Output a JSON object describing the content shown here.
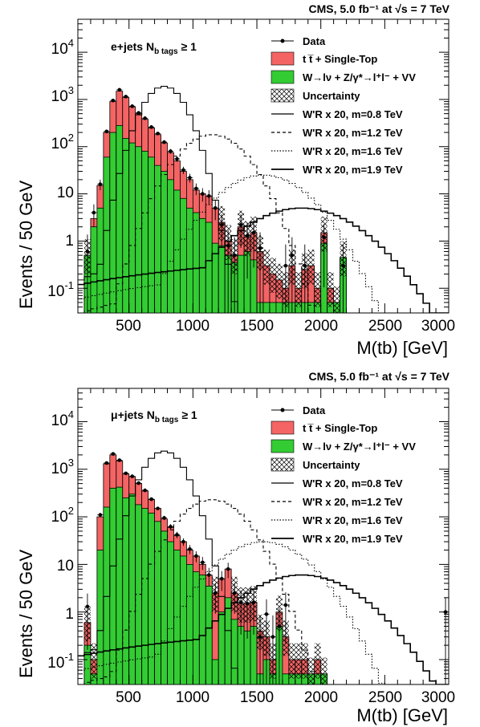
{
  "chart_data": [
    {
      "type": "area",
      "panel": "top",
      "header": "CMS, 5.0 fb⁻¹ at √s = 7 TeV",
      "channel_label": "e+jets N",
      "channel_sub": "b tags",
      "channel_cut": "≥ 1",
      "xlabel": "M(tb) [GeV]",
      "ylabel": "Events / 50 GeV",
      "xlim": [
        100,
        3000
      ],
      "ylim": [
        0.03,
        50000
      ],
      "yscale": "log",
      "x_ticks": [
        "500",
        "1000",
        "1500",
        "2000",
        "2500",
        "3000"
      ],
      "y_ticks": [
        "10⁻¹",
        "1",
        "10",
        "10²",
        "10³",
        "10⁴"
      ],
      "legend": [
        "Data",
        "t t̅ + Single-Top",
        "W→lν + Z/γ*→l⁺l⁻ + VV",
        "Uncertainty",
        "W'R x 20, m=0.8 TeV",
        "W'R x 20, m=1.2 TeV",
        "W'R x 20, m=1.6 TeV",
        "W'R x 20, m=1.9 TeV"
      ],
      "bin_width": 50,
      "bin_start": 150,
      "stack_total": [
        0.5,
        3,
        15,
        200,
        900,
        1500,
        1100,
        700,
        500,
        380,
        250,
        180,
        120,
        75,
        50,
        30,
        20,
        12,
        10,
        9,
        5,
        2.5,
        1,
        0.5,
        2,
        1.2,
        1.5,
        0.6,
        0.3,
        0.2,
        0.15,
        0.1,
        0.3,
        0.1,
        0.25,
        0.3,
        0.1,
        1.5,
        0.1,
        0.05,
        0.45
      ],
      "wlnu": [
        0.5,
        2,
        5,
        60,
        200,
        280,
        150,
        120,
        100,
        80,
        60,
        40,
        30,
        20,
        12,
        8,
        5,
        4,
        3,
        2.5,
        0.9,
        0.8,
        0.5,
        0.35,
        0.5,
        0.6,
        0.4,
        0.05,
        0.05,
        0.05,
        0.05,
        0.05,
        0.05,
        0.05,
        0.05,
        0.05,
        0.05,
        0.9,
        0.05,
        0.05,
        0.45
      ],
      "data": [
        0.6,
        4,
        16,
        210,
        950,
        1600,
        1150,
        720,
        520,
        400,
        260,
        190,
        125,
        80,
        55,
        32,
        22,
        13,
        10,
        9,
        5,
        2.2,
        0.8,
        0.5,
        2.2,
        1.3,
        1.5,
        0.7,
        0,
        0,
        0,
        0.3,
        0.5,
        0,
        0.3,
        0,
        0,
        1.2,
        0,
        0,
        0.3
      ],
      "signals": [
        {
          "name": "W'R x 20, m=0.8 TeV",
          "style": "solid",
          "center": 775,
          "width": 120,
          "peak": 1900,
          "floor": 0.5
        },
        {
          "name": "W'R x 20, m=1.2 TeV",
          "style": "dashed",
          "center": 1150,
          "width": 190,
          "peak": 180,
          "floor": 0.1
        },
        {
          "name": "W'R x 20, m=1.6 TeV",
          "style": "dotted",
          "center": 1550,
          "width": 250,
          "peak": 25,
          "floor": 0.2
        },
        {
          "name": "W'R x 20, m=1.9 TeV",
          "style": "solid",
          "center": 1850,
          "width": 320,
          "peak": 5,
          "floor": 0.4
        }
      ]
    },
    {
      "type": "area",
      "panel": "bottom",
      "header": "CMS, 5.0 fb⁻¹ at √s = 7 TeV",
      "channel_label": "μ+jets N",
      "channel_sub": "b tags",
      "channel_cut": "≥ 1",
      "xlabel": "M(tb) [GeV]",
      "ylabel": "Events / 50 GeV",
      "xlim": [
        100,
        3000
      ],
      "ylim": [
        0.03,
        50000
      ],
      "yscale": "log",
      "x_ticks": [
        "500",
        "1000",
        "1500",
        "2000",
        "2500",
        "3000"
      ],
      "y_ticks": [
        "10⁻¹",
        "1",
        "10",
        "10²",
        "10³",
        "10⁴"
      ],
      "legend": [
        "Data",
        "t t̅ + Single-Top",
        "W→lν + Z/γ*→l⁺l⁻ + VV",
        "Uncertainty",
        "W'R x 20, m=0.8 TeV",
        "W'R x 20, m=1.2 TeV",
        "W'R x 20, m=1.6 TeV",
        "W'R x 20, m=1.9 TeV"
      ],
      "bin_width": 50,
      "bin_start": 150,
      "stack_total": [
        0.6,
        0.1,
        100,
        1300,
        2000,
        1500,
        800,
        700,
        500,
        350,
        230,
        150,
        90,
        60,
        40,
        30,
        20,
        15,
        10,
        6,
        2.5,
        5,
        8,
        2.5,
        1.5,
        1.5,
        1.6,
        0.4,
        0.3,
        0.1,
        1.0,
        0.3,
        0.1,
        0.1,
        0.1,
        0.05,
        0.1,
        0.05
      ],
      "wlnu": [
        0.2,
        0.05,
        20,
        160,
        400,
        420,
        250,
        300,
        180,
        150,
        120,
        80,
        50,
        30,
        20,
        15,
        10,
        7,
        6,
        3.5,
        0.1,
        1,
        2,
        0.7,
        0.5,
        0.4,
        0.5,
        0.05,
        0.1,
        0.05,
        0.5,
        0.05,
        0.05,
        0.05,
        0.05,
        0.05,
        0.05,
        0.05
      ],
      "data": [
        1.3,
        0,
        110,
        1350,
        2100,
        1550,
        820,
        710,
        510,
        360,
        235,
        150,
        95,
        62,
        42,
        30,
        21,
        15,
        11,
        6,
        2.5,
        5,
        8,
        2.5,
        1.6,
        1.5,
        1.6,
        0.3,
        0.9,
        0.3,
        0.5,
        1.4,
        0,
        0,
        0,
        0,
        0,
        0,
        0,
        0,
        0,
        0,
        0,
        0,
        0,
        0,
        0,
        0,
        0,
        0,
        0,
        0,
        0,
        0,
        0,
        0,
        1.0
      ],
      "signals": [
        {
          "name": "W'R x 20, m=0.8 TeV",
          "style": "solid",
          "center": 775,
          "width": 120,
          "peak": 2400,
          "floor": 0.4
        },
        {
          "name": "W'R x 20, m=1.2 TeV",
          "style": "dashed",
          "center": 1150,
          "width": 190,
          "peak": 230,
          "floor": 0.1
        },
        {
          "name": "W'R x 20, m=1.6 TeV",
          "style": "dotted",
          "center": 1550,
          "width": 250,
          "peak": 30,
          "floor": 0.2
        },
        {
          "name": "W'R x 20, m=1.9 TeV",
          "style": "solid",
          "center": 1850,
          "width": 320,
          "peak": 6,
          "floor": 0.4
        }
      ]
    }
  ],
  "colors": {
    "ttbar": "#f46464",
    "wlnu": "#33cc33",
    "line": "#000000"
  }
}
